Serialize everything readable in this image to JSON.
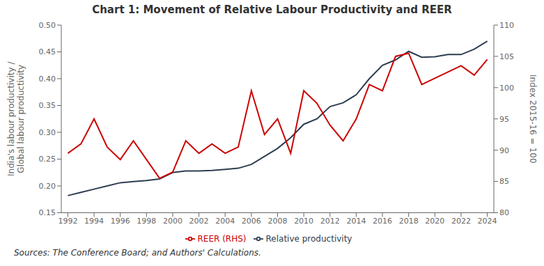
{
  "chart_data": {
    "type": "line",
    "title": "Chart 1: Movement of Relative Labour Productivity and REER",
    "ylabel": "India's labour productivity /\nGlobal labour productivity",
    "y2label": "Index 2015-16 = 100",
    "annotations": [
      "Sources: The Conference Board; and Authors' Calculations."
    ],
    "x": [
      1992,
      1993,
      1994,
      1995,
      1996,
      1997,
      1998,
      1999,
      2000,
      2001,
      2002,
      2003,
      2004,
      2005,
      2006,
      2007,
      2008,
      2009,
      2010,
      2011,
      2012,
      2013,
      2014,
      2015,
      2016,
      2017,
      2018,
      2019,
      2020,
      2021,
      2022,
      2023,
      2024
    ],
    "series": [
      {
        "name": "Relative productivity",
        "color": "#2e3d52",
        "values": [
          0.182,
          0.188,
          0.194,
          0.2,
          0.206,
          0.208,
          0.21,
          0.213,
          0.225,
          0.228,
          0.228,
          0.229,
          0.231,
          0.233,
          0.24,
          0.255,
          0.27,
          0.29,
          0.315,
          0.325,
          0.348,
          0.355,
          0.37,
          0.4,
          0.425,
          0.435,
          0.451,
          0.44,
          0.441,
          0.445,
          0.445,
          0.455,
          0.47
        ]
      },
      {
        "name": "REER (RHS)",
        "color": "#cc0000",
        "axis": "y2",
        "values": [
          89.5,
          91.0,
          95.0,
          90.5,
          88.5,
          91.5,
          88.5,
          85.5,
          86.5,
          91.5,
          89.5,
          91.0,
          89.5,
          90.5,
          99.5,
          92.5,
          95.0,
          89.5,
          99.5,
          97.5,
          94.0,
          91.5,
          95.0,
          100.5,
          99.5,
          105.0,
          105.5,
          100.5,
          101.5,
          102.5,
          103.5,
          102.0,
          104.5
        ]
      }
    ],
    "xlim": [
      1991.5,
      2024.5
    ],
    "xticks": [
      1992,
      1994,
      1996,
      1998,
      2000,
      2002,
      2004,
      2006,
      2008,
      2010,
      2012,
      2014,
      2016,
      2018,
      2020,
      2022,
      2024
    ],
    "ylim": [
      0.15,
      0.5
    ],
    "yticks": [
      0.15,
      {
        "value": 0.2,
        "label": "0.20"
      },
      0.25,
      {
        "value": 0.3,
        "label": "0.30"
      },
      0.35,
      {
        "value": 0.4,
        "label": "0.40"
      },
      0.45,
      {
        "value": 0.5,
        "label": "0.50"
      }
    ],
    "y2lim": [
      80,
      110
    ],
    "y2ticks": [
      80,
      85,
      90,
      95,
      100,
      105,
      110
    ],
    "legend": "bottom",
    "grid": false
  }
}
